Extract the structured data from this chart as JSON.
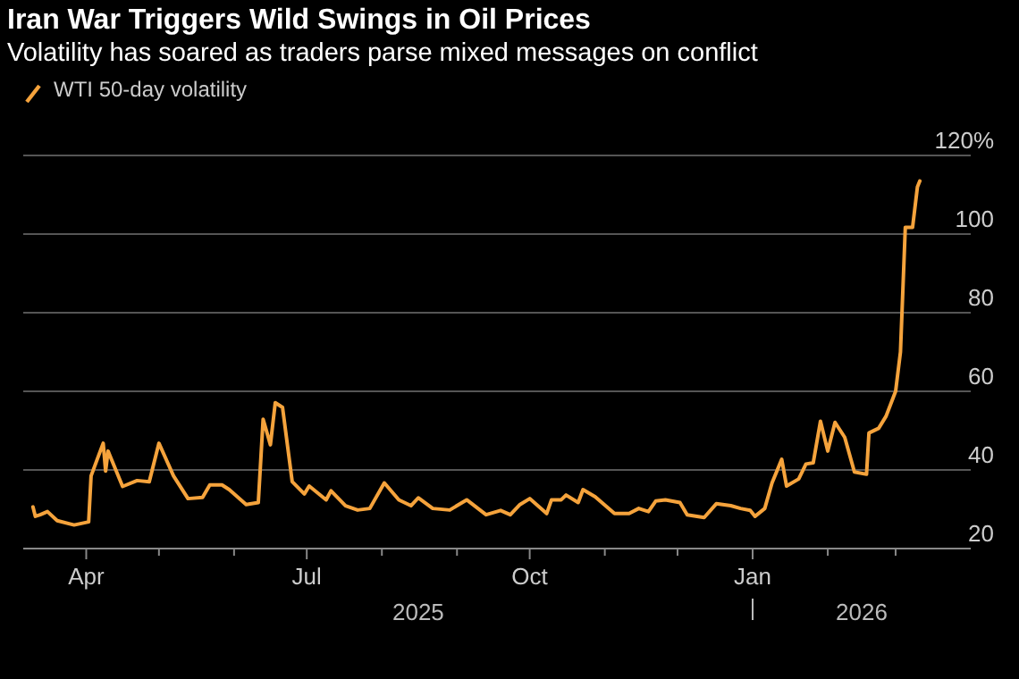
{
  "chart_data": {
    "type": "line",
    "title": "Iran War Triggers Wild Swings in Oil Prices",
    "subtitle": "Volatility has soared as traders parse mixed messages on conflict",
    "annotations": [
      "2025",
      "2026"
    ],
    "legend": "top left",
    "grid": "y",
    "marker": "none",
    "line_style": "solid",
    "xlim": [
      "2025-03-06",
      "2026-04-01"
    ],
    "xticks": [
      {
        "value": "2025-04-01",
        "label": "Apr"
      },
      {
        "value": "2025-05-01",
        "label": null
      },
      {
        "value": "2025-06-01",
        "label": null
      },
      {
        "value": "2025-07-01",
        "label": "Jul"
      },
      {
        "value": "2025-08-01",
        "label": null
      },
      {
        "value": "2025-09-01",
        "label": null
      },
      {
        "value": "2025-10-01",
        "label": "Oct"
      },
      {
        "value": "2025-11-01",
        "label": null
      },
      {
        "value": "2025-12-01",
        "label": null
      },
      {
        "value": "2026-01-01",
        "label": "Jan"
      },
      {
        "value": "2026-02-01",
        "label": null
      },
      {
        "value": "2026-03-01",
        "label": null
      }
    ],
    "ylim": [
      20,
      120
    ],
    "yticks": [
      20,
      40,
      60,
      80,
      100,
      {
        "value": 120,
        "label": "120%"
      }
    ],
    "series": [
      {
        "name": "WTI 50-day volatility",
        "color": "#f5a33c",
        "x": [
          "2025-03-10",
          "2025-03-11",
          "2025-03-13",
          "2025-03-16",
          "2025-03-20",
          "2025-03-27",
          "2025-04-02",
          "2025-04-03",
          "2025-04-08",
          "2025-04-09",
          "2025-04-10",
          "2025-04-16",
          "2025-04-22",
          "2025-04-27",
          "2025-05-01",
          "2025-05-07",
          "2025-05-13",
          "2025-05-19",
          "2025-05-22",
          "2025-05-27",
          "2025-05-30",
          "2025-06-06",
          "2025-06-11",
          "2025-06-13",
          "2025-06-16",
          "2025-06-18",
          "2025-06-21",
          "2025-06-25",
          "2025-06-30",
          "2025-07-02",
          "2025-07-09",
          "2025-07-11",
          "2025-07-17",
          "2025-07-22",
          "2025-07-27",
          "2025-08-02",
          "2025-08-08",
          "2025-08-13",
          "2025-08-16",
          "2025-08-22",
          "2025-08-29",
          "2025-09-05",
          "2025-09-13",
          "2025-09-19",
          "2025-09-23",
          "2025-09-27",
          "2025-10-01",
          "2025-10-08",
          "2025-10-10",
          "2025-10-14",
          "2025-10-16",
          "2025-10-21",
          "2025-10-23",
          "2025-10-28",
          "2025-11-05",
          "2025-11-11",
          "2025-11-15",
          "2025-11-19",
          "2025-11-22",
          "2025-11-26",
          "2025-12-02",
          "2025-12-05",
          "2025-12-12",
          "2025-12-17",
          "2025-12-23",
          "2025-12-27",
          "2025-12-31",
          "2026-01-02",
          "2026-01-06",
          "2026-01-09",
          "2026-01-13",
          "2026-01-15",
          "2026-01-20",
          "2026-01-23",
          "2026-01-26",
          "2026-01-29",
          "2026-02-01",
          "2026-02-04",
          "2026-02-08",
          "2026-02-12",
          "2026-02-17",
          "2026-02-18",
          "2026-02-22",
          "2026-02-25",
          "2026-03-01",
          "2026-03-03",
          "2026-03-05",
          "2026-03-08",
          "2026-03-10",
          "2026-03-11"
        ],
        "values": [
          30.6,
          28.2,
          28.6,
          29.4,
          27.1,
          26,
          26.8,
          38.5,
          46.8,
          39.7,
          44.8,
          35.8,
          37.3,
          37,
          46.8,
          38.5,
          32.7,
          33,
          36.2,
          36.2,
          35,
          31.2,
          31.7,
          52.9,
          46.4,
          57.1,
          55.9,
          37,
          33.9,
          35.9,
          32.4,
          34.7,
          30.9,
          29.8,
          30.2,
          36.7,
          32.4,
          30.9,
          32.9,
          30.2,
          29.8,
          32.4,
          28.6,
          29.7,
          28.6,
          31.2,
          32.7,
          28.9,
          32.4,
          32.4,
          33.6,
          31.7,
          35,
          33.2,
          28.9,
          28.9,
          30.2,
          29.4,
          32.1,
          32.4,
          31.7,
          28.6,
          27.9,
          31.4,
          30.9,
          30.2,
          29.7,
          28.2,
          30.2,
          36.7,
          42.7,
          35.9,
          37.7,
          41.5,
          41.8,
          52.4,
          44.8,
          52.1,
          48.3,
          39.5,
          38.9,
          49.4,
          50.6,
          53.6,
          60,
          70,
          101.7,
          101.7,
          112,
          113.5
        ]
      }
    ]
  }
}
